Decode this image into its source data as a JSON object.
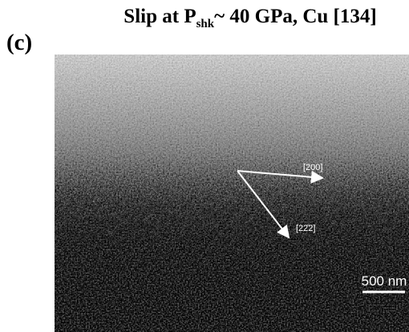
{
  "figure": {
    "panel_label": "(c)",
    "title": {
      "prefix": "Slip at P",
      "subscript": "shk",
      "suffix": "~ 40 GPa, Cu [134]"
    },
    "annotations": {
      "direction_1": "[200]",
      "direction_2": "[22̄2]",
      "scale_bar": "500 nm"
    }
  }
}
